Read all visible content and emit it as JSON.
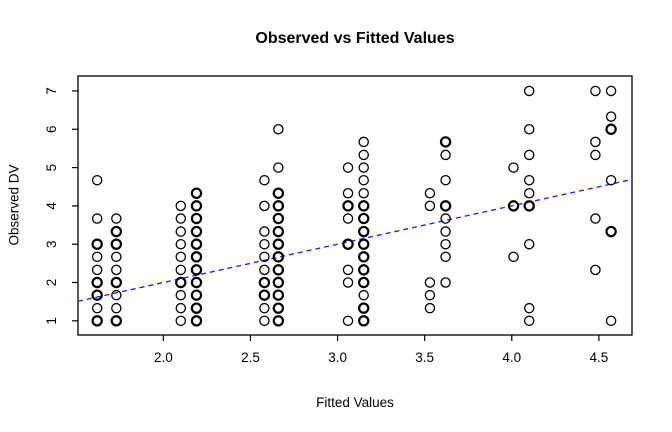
{
  "chart_data": {
    "type": "scatter",
    "title": "Observed vs Fitted Values",
    "xlabel": "Fitted Values",
    "ylabel": "Observed DV",
    "x_tick_labels": [
      "2.0",
      "2.5",
      "3.0",
      "3.5",
      "4.0",
      "4.5"
    ],
    "x_tick_values": [
      2.0,
      2.5,
      3.0,
      3.5,
      4.0,
      4.5
    ],
    "y_tick_labels": [
      "1",
      "2",
      "3",
      "4",
      "5",
      "6",
      "7"
    ],
    "y_tick_values": [
      1,
      2,
      3,
      4,
      5,
      6,
      7
    ],
    "xlim": [
      1.51,
      4.69
    ],
    "ylim": [
      0.63,
      7.39
    ],
    "grid": false,
    "legend": "none",
    "marker": "open-circle",
    "point_color": "#000000",
    "axis_color": "#000000",
    "background_color": "#ffffff",
    "reference_line": {
      "kind": "identity",
      "slope": 1,
      "intercept": 0,
      "style": "dashed",
      "color": "#1a1aff"
    },
    "series": [
      {
        "name": "observations",
        "note": "points are [fitted_x, observed_y, overplotted_flag]; observed DV on 1/3 increments (3-item scale means)",
        "points": [
          [
            1.62,
            4.67,
            0
          ],
          [
            1.62,
            3.67,
            0
          ],
          [
            1.62,
            3.0,
            1
          ],
          [
            1.62,
            2.67,
            0
          ],
          [
            1.62,
            2.33,
            0
          ],
          [
            1.62,
            2.0,
            1
          ],
          [
            1.62,
            1.67,
            1
          ],
          [
            1.62,
            1.33,
            0
          ],
          [
            1.62,
            1.0,
            1
          ],
          [
            1.73,
            3.67,
            0
          ],
          [
            1.73,
            3.33,
            1
          ],
          [
            1.73,
            3.0,
            1
          ],
          [
            1.73,
            2.67,
            0
          ],
          [
            1.73,
            2.33,
            0
          ],
          [
            1.73,
            2.0,
            1
          ],
          [
            1.73,
            1.67,
            0
          ],
          [
            1.73,
            1.33,
            0
          ],
          [
            1.73,
            1.0,
            1
          ],
          [
            2.1,
            4.0,
            0
          ],
          [
            2.1,
            3.67,
            0
          ],
          [
            2.1,
            3.33,
            0
          ],
          [
            2.1,
            3.0,
            0
          ],
          [
            2.1,
            2.67,
            0
          ],
          [
            2.1,
            2.33,
            0
          ],
          [
            2.1,
            2.0,
            1
          ],
          [
            2.1,
            1.67,
            0
          ],
          [
            2.1,
            1.33,
            0
          ],
          [
            2.1,
            1.0,
            0
          ],
          [
            2.19,
            4.33,
            1
          ],
          [
            2.19,
            4.0,
            1
          ],
          [
            2.19,
            3.67,
            1
          ],
          [
            2.19,
            3.33,
            1
          ],
          [
            2.19,
            3.0,
            1
          ],
          [
            2.19,
            2.67,
            1
          ],
          [
            2.19,
            2.33,
            1
          ],
          [
            2.19,
            2.0,
            1
          ],
          [
            2.19,
            1.67,
            1
          ],
          [
            2.19,
            1.33,
            1
          ],
          [
            2.19,
            1.0,
            1
          ],
          [
            2.58,
            4.67,
            0
          ],
          [
            2.58,
            4.0,
            0
          ],
          [
            2.58,
            3.33,
            0
          ],
          [
            2.58,
            3.0,
            0
          ],
          [
            2.58,
            2.67,
            0
          ],
          [
            2.58,
            2.33,
            0
          ],
          [
            2.58,
            2.0,
            1
          ],
          [
            2.58,
            1.67,
            1
          ],
          [
            2.58,
            1.33,
            0
          ],
          [
            2.58,
            1.0,
            0
          ],
          [
            2.66,
            6.0,
            0
          ],
          [
            2.66,
            5.0,
            0
          ],
          [
            2.66,
            4.33,
            1
          ],
          [
            2.66,
            4.0,
            1
          ],
          [
            2.66,
            3.67,
            1
          ],
          [
            2.66,
            3.33,
            1
          ],
          [
            2.66,
            3.0,
            1
          ],
          [
            2.66,
            2.67,
            1
          ],
          [
            2.66,
            2.33,
            1
          ],
          [
            2.66,
            2.0,
            1
          ],
          [
            2.66,
            1.67,
            1
          ],
          [
            2.66,
            1.33,
            1
          ],
          [
            2.66,
            1.0,
            1
          ],
          [
            3.06,
            5.0,
            0
          ],
          [
            3.06,
            4.33,
            0
          ],
          [
            3.06,
            4.0,
            1
          ],
          [
            3.06,
            3.67,
            0
          ],
          [
            3.06,
            3.0,
            1
          ],
          [
            3.06,
            2.33,
            0
          ],
          [
            3.06,
            2.0,
            0
          ],
          [
            3.06,
            1.0,
            0
          ],
          [
            3.15,
            5.67,
            0
          ],
          [
            3.15,
            5.33,
            0
          ],
          [
            3.15,
            5.0,
            0
          ],
          [
            3.15,
            4.67,
            0
          ],
          [
            3.15,
            4.33,
            0
          ],
          [
            3.15,
            4.0,
            1
          ],
          [
            3.15,
            3.67,
            1
          ],
          [
            3.15,
            3.33,
            1
          ],
          [
            3.15,
            3.0,
            1
          ],
          [
            3.15,
            2.67,
            1
          ],
          [
            3.15,
            2.33,
            1
          ],
          [
            3.15,
            2.0,
            1
          ],
          [
            3.15,
            1.67,
            0
          ],
          [
            3.15,
            1.33,
            1
          ],
          [
            3.15,
            1.0,
            1
          ],
          [
            3.53,
            4.33,
            0
          ],
          [
            3.53,
            4.0,
            0
          ],
          [
            3.53,
            2.0,
            0
          ],
          [
            3.53,
            1.67,
            0
          ],
          [
            3.53,
            1.33,
            0
          ],
          [
            3.62,
            5.67,
            1
          ],
          [
            3.62,
            5.33,
            0
          ],
          [
            3.62,
            4.67,
            0
          ],
          [
            3.62,
            4.0,
            1
          ],
          [
            3.62,
            3.67,
            0
          ],
          [
            3.62,
            3.33,
            0
          ],
          [
            3.62,
            3.0,
            0
          ],
          [
            3.62,
            2.67,
            0
          ],
          [
            3.62,
            2.0,
            0
          ],
          [
            4.01,
            5.0,
            0
          ],
          [
            4.01,
            4.0,
            1
          ],
          [
            4.01,
            2.67,
            0
          ],
          [
            4.1,
            7.0,
            0
          ],
          [
            4.1,
            6.0,
            0
          ],
          [
            4.1,
            5.33,
            0
          ],
          [
            4.1,
            4.67,
            0
          ],
          [
            4.1,
            4.33,
            0
          ],
          [
            4.1,
            4.0,
            1
          ],
          [
            4.1,
            3.0,
            0
          ],
          [
            4.1,
            1.33,
            0
          ],
          [
            4.1,
            1.0,
            0
          ],
          [
            4.48,
            7.0,
            0
          ],
          [
            4.48,
            5.67,
            0
          ],
          [
            4.48,
            5.33,
            0
          ],
          [
            4.48,
            3.67,
            0
          ],
          [
            4.48,
            2.33,
            0
          ],
          [
            4.57,
            7.0,
            0
          ],
          [
            4.57,
            6.33,
            0
          ],
          [
            4.57,
            6.0,
            1
          ],
          [
            4.57,
            4.67,
            0
          ],
          [
            4.57,
            3.33,
            1
          ],
          [
            4.57,
            1.0,
            0
          ]
        ]
      }
    ]
  }
}
